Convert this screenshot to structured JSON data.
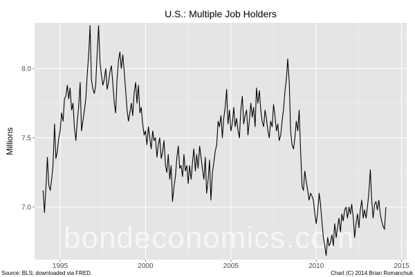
{
  "chart_data": {
    "type": "line",
    "title": "U.S.: Multiple Job Holders",
    "xlabel": "",
    "ylabel": "Millions",
    "xlim": [
      1993.5,
      2015.3
    ],
    "ylim": [
      6.62,
      8.33
    ],
    "x_ticks": [
      1995,
      2000,
      2005,
      2010,
      2015
    ],
    "x_tick_labels": [
      "1995",
      "2000",
      "2005",
      "2010",
      "2015"
    ],
    "y_ticks": [
      7.0,
      7.5,
      8.0
    ],
    "y_tick_labels": [
      "7.0",
      "7.5",
      "8.0"
    ],
    "grid": true,
    "background": "#e5e5e5",
    "line_color": "#000000",
    "series": [
      {
        "x": [
          1994.0,
          1994.08,
          1994.17,
          1994.25,
          1994.33,
          1994.42,
          1994.5,
          1994.58,
          1994.67,
          1994.75,
          1994.83,
          1994.92,
          1995.0,
          1995.08,
          1995.17,
          1995.25,
          1995.33,
          1995.42,
          1995.5,
          1995.58,
          1995.67,
          1995.75,
          1995.83,
          1995.92,
          1996.0,
          1996.08,
          1996.17,
          1996.25,
          1996.33,
          1996.42,
          1996.5,
          1996.58,
          1996.67,
          1996.75,
          1996.83,
          1996.92,
          1997.0,
          1997.08,
          1997.17,
          1997.25,
          1997.33,
          1997.42,
          1997.5,
          1997.58,
          1997.67,
          1997.75,
          1997.83,
          1997.92,
          1998.0,
          1998.08,
          1998.17,
          1998.25,
          1998.33,
          1998.42,
          1998.5,
          1998.58,
          1998.67,
          1998.75,
          1998.83,
          1998.92,
          1999.0,
          1999.08,
          1999.17,
          1999.25,
          1999.33,
          1999.42,
          1999.5,
          1999.58,
          1999.67,
          1999.75,
          1999.83,
          1999.92,
          2000.0,
          2000.08,
          2000.17,
          2000.25,
          2000.33,
          2000.42,
          2000.5,
          2000.58,
          2000.67,
          2000.75,
          2000.83,
          2000.92,
          2001.0,
          2001.08,
          2001.17,
          2001.25,
          2001.33,
          2001.42,
          2001.5,
          2001.58,
          2001.67,
          2001.75,
          2001.83,
          2001.92,
          2002.0,
          2002.08,
          2002.17,
          2002.25,
          2002.33,
          2002.42,
          2002.5,
          2002.58,
          2002.67,
          2002.75,
          2002.83,
          2002.92,
          2003.0,
          2003.08,
          2003.17,
          2003.25,
          2003.33,
          2003.42,
          2003.5,
          2003.58,
          2003.67,
          2003.75,
          2003.83,
          2003.92,
          2004.0,
          2004.08,
          2004.17,
          2004.25,
          2004.33,
          2004.42,
          2004.5,
          2004.58,
          2004.67,
          2004.75,
          2004.83,
          2004.92,
          2005.0,
          2005.08,
          2005.17,
          2005.25,
          2005.33,
          2005.42,
          2005.5,
          2005.58,
          2005.67,
          2005.75,
          2005.83,
          2005.92,
          2006.0,
          2006.08,
          2006.17,
          2006.25,
          2006.33,
          2006.42,
          2006.5,
          2006.58,
          2006.67,
          2006.75,
          2006.83,
          2006.92,
          2007.0,
          2007.08,
          2007.17,
          2007.25,
          2007.33,
          2007.42,
          2007.5,
          2007.58,
          2007.67,
          2007.75,
          2007.83,
          2007.92,
          2008.0,
          2008.08,
          2008.17,
          2008.25,
          2008.33,
          2008.42,
          2008.5,
          2008.58,
          2008.67,
          2008.75,
          2008.83,
          2008.92,
          2009.0,
          2009.08,
          2009.17,
          2009.25,
          2009.33,
          2009.42,
          2009.5,
          2009.58,
          2009.67,
          2009.75,
          2009.83,
          2009.92,
          2010.0,
          2010.08,
          2010.17,
          2010.25,
          2010.33,
          2010.42,
          2010.5,
          2010.58,
          2010.67,
          2010.75,
          2010.83,
          2010.92,
          2011.0,
          2011.08,
          2011.17,
          2011.25,
          2011.33,
          2011.42,
          2011.5,
          2011.58,
          2011.67,
          2011.75,
          2011.83,
          2011.92,
          2012.0,
          2012.08,
          2012.17,
          2012.25,
          2012.33,
          2012.42,
          2012.5,
          2012.58,
          2012.67,
          2012.75,
          2012.83,
          2012.92,
          2013.0,
          2013.08,
          2013.17,
          2013.25,
          2013.33,
          2013.42,
          2013.5,
          2013.58,
          2013.67,
          2013.75,
          2013.83,
          2013.92,
          2014.0,
          2014.08
        ],
        "values": [
          7.12,
          6.96,
          7.15,
          7.36,
          7.16,
          7.12,
          7.2,
          7.3,
          7.6,
          7.35,
          7.4,
          7.5,
          7.55,
          7.68,
          7.62,
          7.78,
          7.8,
          7.88,
          7.78,
          7.86,
          7.7,
          7.75,
          7.58,
          7.48,
          7.62,
          7.72,
          7.9,
          7.55,
          7.62,
          7.7,
          7.78,
          7.95,
          8.1,
          8.31,
          7.92,
          7.85,
          7.82,
          7.88,
          8.12,
          8.31,
          8.05,
          7.95,
          7.88,
          7.92,
          8.0,
          7.85,
          7.9,
          7.98,
          8.02,
          7.9,
          7.75,
          7.68,
          7.92,
          8.06,
          8.12,
          8.0,
          8.1,
          7.98,
          7.85,
          7.7,
          7.62,
          7.68,
          7.75,
          7.66,
          7.82,
          7.9,
          7.75,
          7.88,
          7.68,
          7.72,
          7.6,
          7.52,
          7.55,
          7.45,
          7.58,
          7.5,
          7.42,
          7.55,
          7.48,
          7.5,
          7.36,
          7.45,
          7.5,
          7.35,
          7.4,
          7.48,
          7.3,
          7.25,
          7.38,
          7.2,
          7.3,
          7.04,
          7.15,
          7.22,
          7.35,
          7.44,
          7.28,
          7.3,
          7.22,
          7.38,
          7.26,
          7.3,
          7.17,
          7.3,
          7.2,
          7.32,
          7.42,
          7.26,
          7.38,
          7.28,
          7.44,
          7.36,
          7.28,
          7.2,
          7.36,
          7.1,
          7.2,
          7.34,
          7.05,
          7.25,
          7.32,
          7.4,
          7.45,
          7.62,
          7.58,
          7.66,
          7.5,
          7.64,
          7.72,
          7.85,
          7.6,
          7.7,
          7.55,
          7.6,
          7.72,
          7.58,
          7.64,
          7.55,
          7.5,
          7.7,
          7.8,
          7.6,
          7.66,
          7.7,
          7.52,
          7.62,
          7.75,
          7.65,
          7.72,
          7.58,
          7.86,
          7.75,
          7.84,
          7.7,
          7.62,
          7.58,
          7.7,
          7.64,
          7.55,
          7.5,
          7.62,
          7.58,
          7.74,
          7.66,
          7.55,
          7.6,
          7.48,
          7.52,
          7.62,
          7.7,
          7.84,
          7.92,
          8.07,
          7.9,
          7.55,
          7.45,
          7.42,
          7.5,
          7.62,
          7.55,
          7.7,
          7.42,
          7.15,
          7.12,
          7.26,
          7.18,
          7.12,
          7.05,
          7.1,
          7.08,
          7.05,
          6.95,
          6.88,
          6.96,
          7.1,
          7.02,
          6.9,
          6.78,
          6.72,
          6.65,
          6.78,
          6.72,
          6.74,
          6.8,
          6.72,
          6.88,
          6.78,
          6.85,
          6.92,
          6.82,
          6.95,
          6.9,
          6.98,
          7.0,
          6.92,
          7.0,
          6.95,
          7.02,
          6.92,
          6.78,
          6.88,
          6.95,
          6.85,
          6.98,
          7.05,
          6.92,
          6.98,
          6.92,
          7.0,
          7.1,
          7.27,
          7.05,
          6.92,
          7.02,
          7.04,
          6.98,
          7.05,
          6.95,
          6.9,
          6.86,
          6.84,
          7.0
        ]
      }
    ]
  },
  "footer": {
    "source": "Source: BLS; downloaded via FRED.",
    "credit": "Chart (C) 2014 Brian Romanchuk"
  },
  "watermark": "bondeconomics.com"
}
